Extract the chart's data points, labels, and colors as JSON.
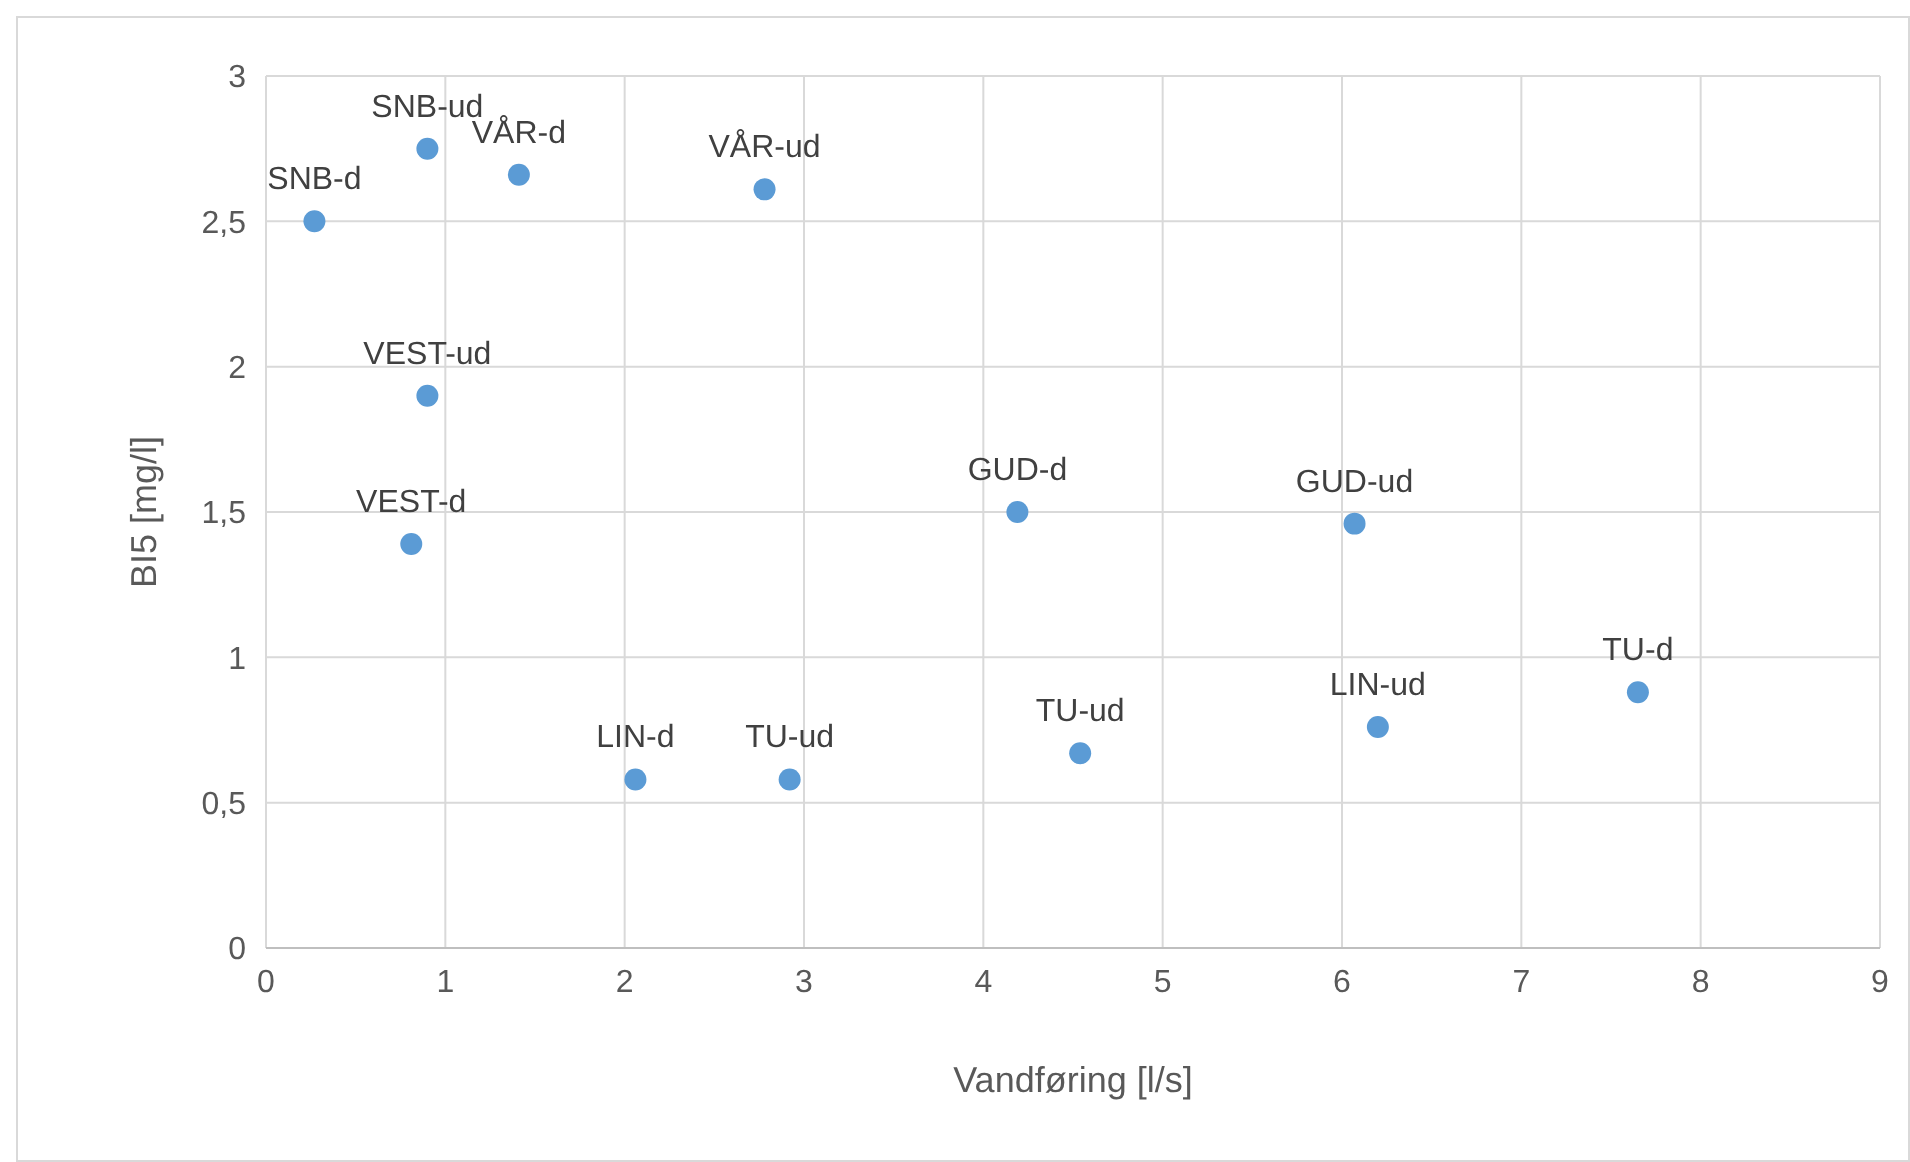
{
  "chart_data": {
    "type": "scatter",
    "xlabel": "Vandføring [l/s]",
    "ylabel": "BI5 [mg/l]",
    "x": [
      0.27,
      0.9,
      1.41,
      2.78,
      0.9,
      0.81,
      4.19,
      6.07,
      2.06,
      2.92,
      4.54,
      6.2,
      7.65
    ],
    "series": [
      {
        "color": "#5b9bd5",
        "values": [
          2.5,
          2.75,
          2.66,
          2.61,
          1.9,
          1.39,
          1.5,
          1.46,
          0.58,
          0.58,
          0.67,
          0.76,
          0.88
        ]
      }
    ],
    "xlim": [
      0,
      9
    ],
    "xticks": [
      0,
      1,
      2,
      3,
      4,
      5,
      6,
      7,
      8,
      9
    ],
    "ylim": [
      0,
      3
    ],
    "yticks": [
      0,
      {
        "value": 0.5,
        "label": "0,5"
      },
      1,
      {
        "value": 1.5,
        "label": "1,5"
      },
      2,
      {
        "value": 2.5,
        "label": "2,5"
      },
      3
    ],
    "grid": true,
    "marker": "circle",
    "annotations": [
      {
        "text": "SNB-d",
        "x": 0.27,
        "y": 2.5
      },
      {
        "text": "SNB-ud",
        "x": 0.9,
        "y": 2.75
      },
      {
        "text": "VÅR-d",
        "x": 1.41,
        "y": 2.66
      },
      {
        "text": "VÅR-ud",
        "x": 2.78,
        "y": 2.61
      },
      {
        "text": "VEST-ud",
        "x": 0.9,
        "y": 1.9
      },
      {
        "text": "VEST-d",
        "x": 0.81,
        "y": 1.39
      },
      {
        "text": "GUD-d",
        "x": 4.19,
        "y": 1.5
      },
      {
        "text": "GUD-ud",
        "x": 6.07,
        "y": 1.46
      },
      {
        "text": "LIN-d",
        "x": 2.06,
        "y": 0.58
      },
      {
        "text": "TU-ud",
        "x": 2.92,
        "y": 0.58
      },
      {
        "text": "TU-ud",
        "x": 4.54,
        "y": 0.67
      },
      {
        "text": "LIN-ud",
        "x": 6.2,
        "y": 0.76
      },
      {
        "text": "TU-d",
        "x": 7.65,
        "y": 0.88
      }
    ]
  }
}
